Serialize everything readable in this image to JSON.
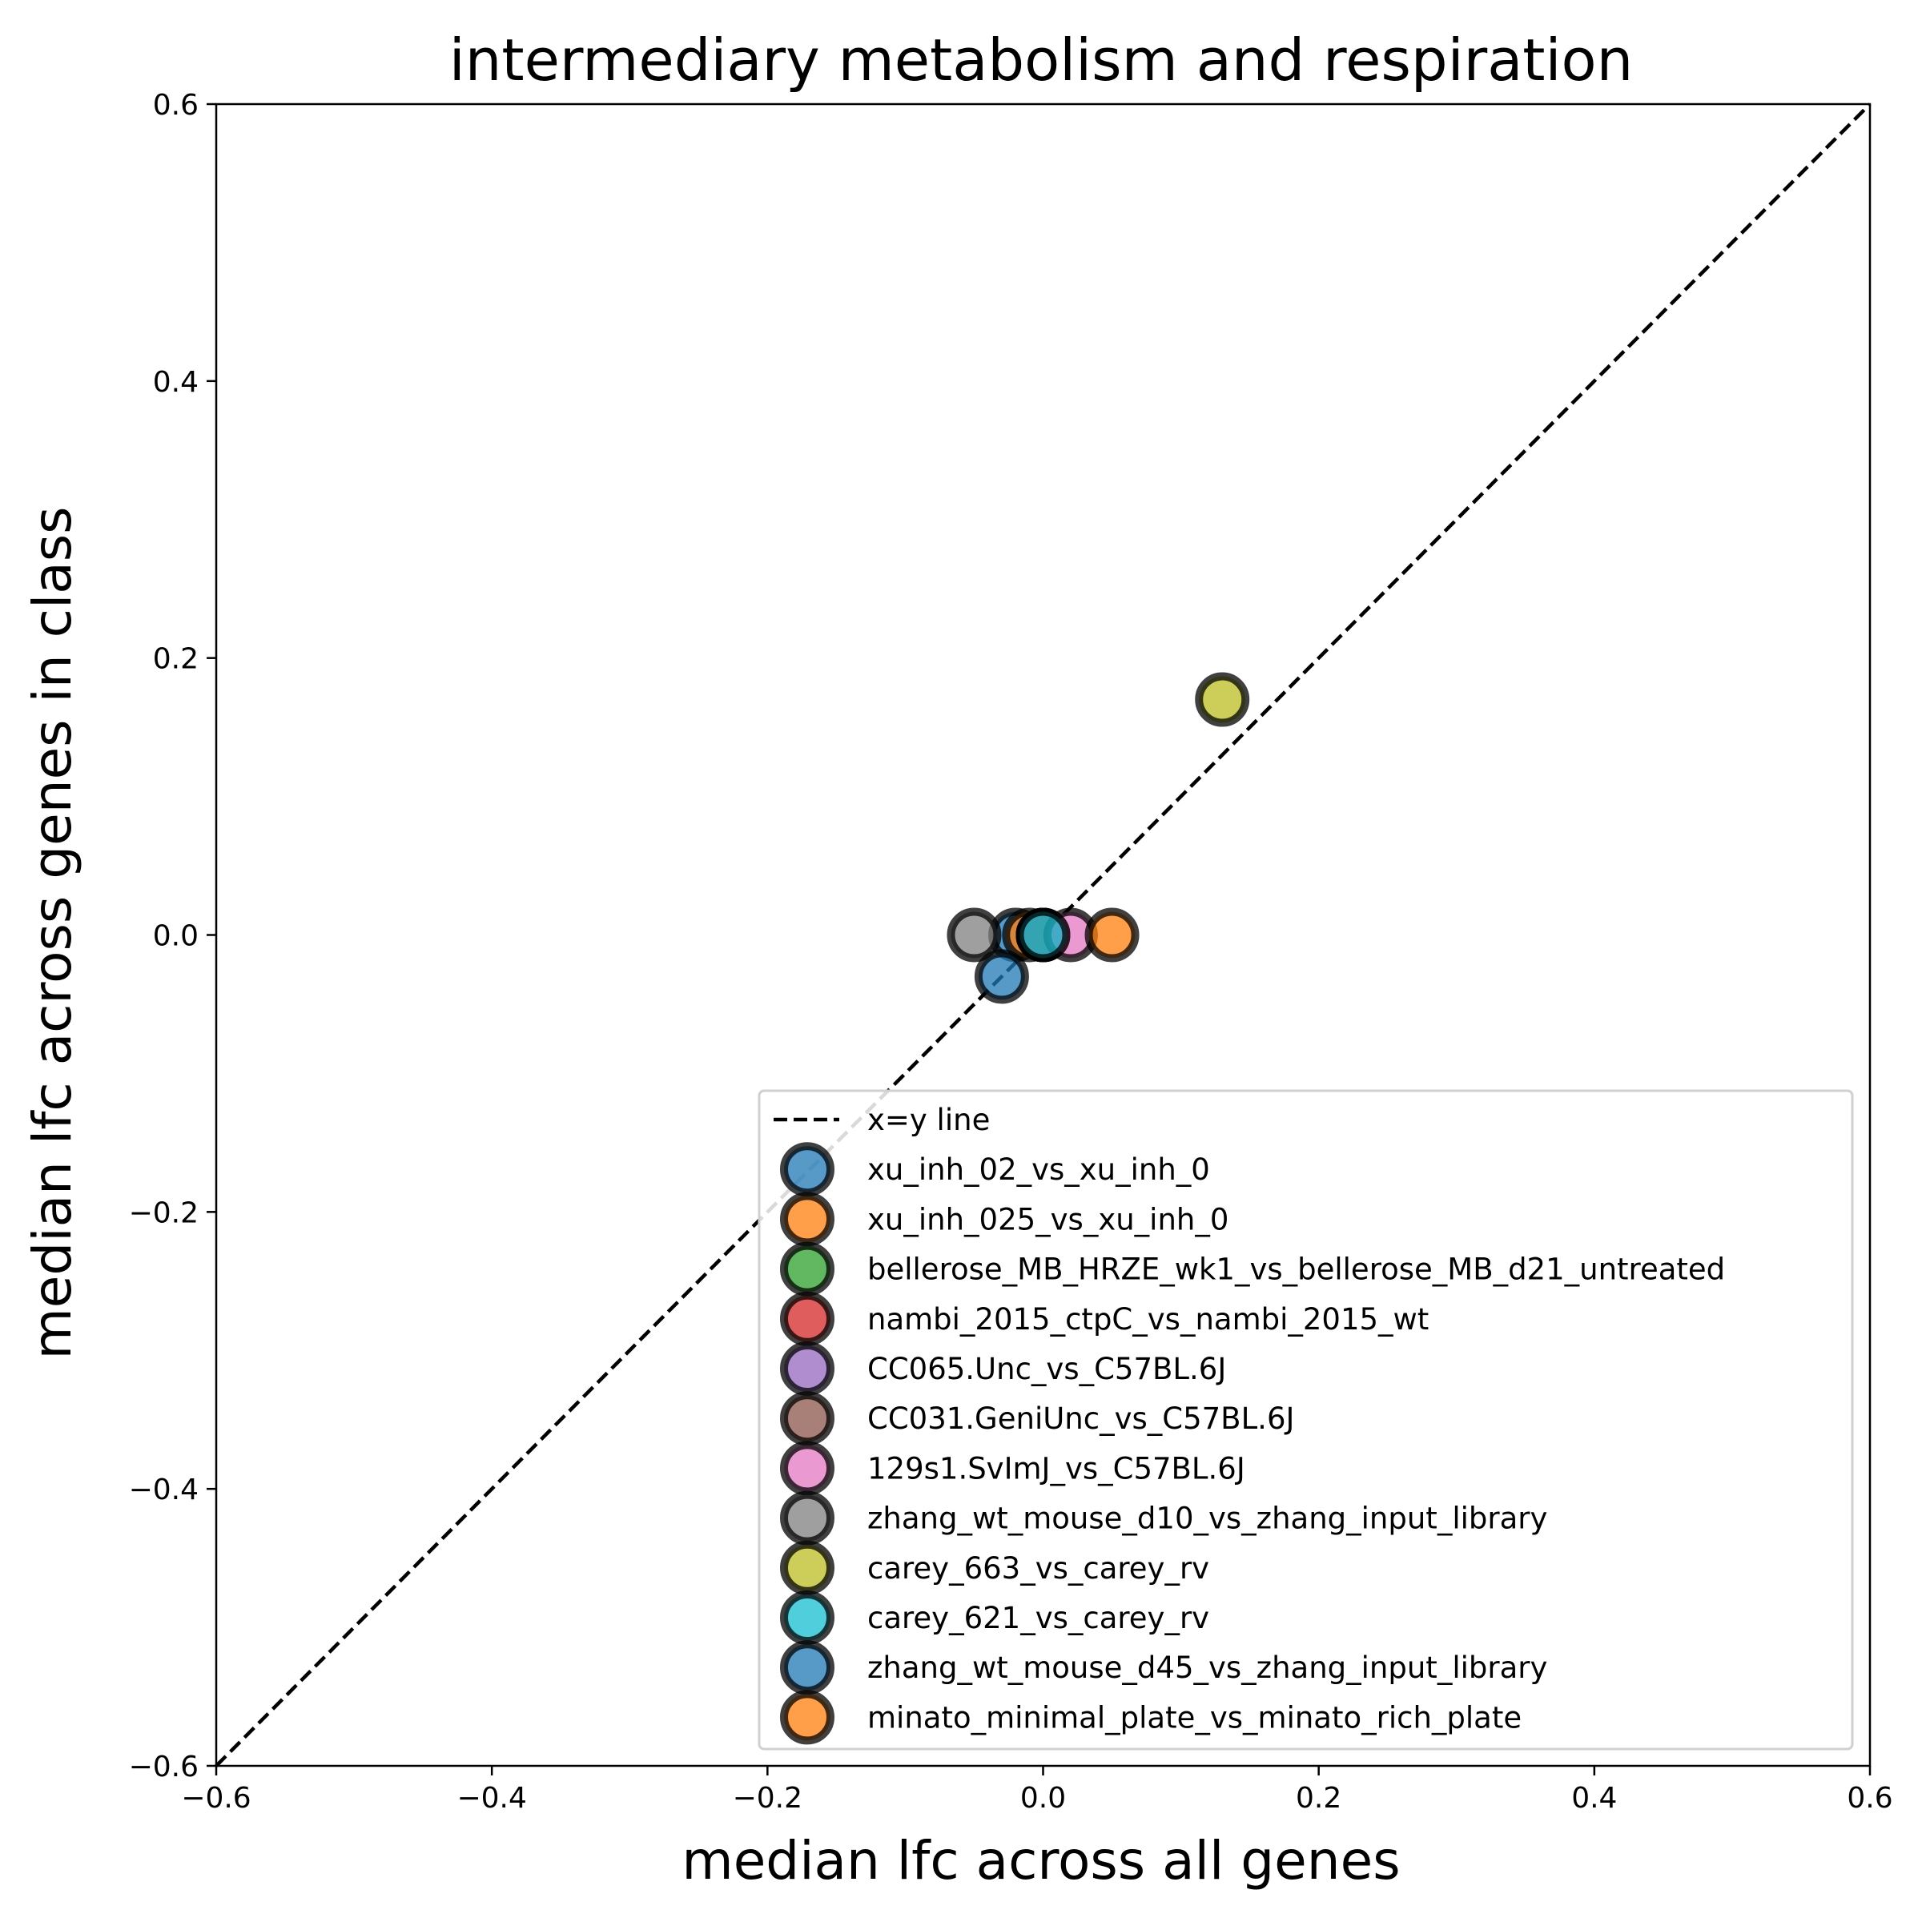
{
  "chart_data": {
    "type": "scatter",
    "title": "intermediary metabolism and respiration",
    "xlabel": "median lfc across all genes",
    "ylabel": "median lfc across genes in class",
    "xlim": [
      -0.6,
      0.6
    ],
    "ylim": [
      -0.6,
      0.6
    ],
    "xticks": [
      -0.6,
      -0.4,
      -0.2,
      0.0,
      0.2,
      0.4,
      0.6
    ],
    "yticks": [
      -0.6,
      -0.4,
      -0.2,
      0.0,
      0.2,
      0.4,
      0.6
    ],
    "xtick_labels": [
      "−0.6",
      "−0.4",
      "−0.2",
      "0.0",
      "0.2",
      "0.4",
      "0.6"
    ],
    "ytick_labels": [
      "−0.6",
      "−0.4",
      "−0.2",
      "0.0",
      "0.2",
      "0.4",
      "0.6"
    ],
    "grid": false,
    "legend_position": "lower-right",
    "reference_line": {
      "name": "x=y line",
      "style": "dashed",
      "color": "#000000"
    },
    "series": [
      {
        "name": "xu_inh_02_vs_xu_inh_0",
        "color": "#1f77b4",
        "x": -0.02,
        "y": 0.0
      },
      {
        "name": "xu_inh_025_vs_xu_inh_0",
        "color": "#ff7f0e",
        "x": -0.01,
        "y": 0.0
      },
      {
        "name": "bellerose_MB_HRZE_wk1_vs_bellerose_MB_d21_untreated",
        "color": "#2ca02c",
        "x": 0.0,
        "y": 0.0
      },
      {
        "name": "nambi_2015_ctpC_vs_nambi_2015_wt",
        "color": "#d62728",
        "x": 0.0,
        "y": 0.0
      },
      {
        "name": "CC065.Unc_vs_C57BL.6J",
        "color": "#9467bd",
        "x": 0.0,
        "y": 0.0
      },
      {
        "name": "CC031.GeniUnc_vs_C57BL.6J",
        "color": "#8c564b",
        "x": 0.0,
        "y": 0.0
      },
      {
        "name": "129s1.SvImJ_vs_C57BL.6J",
        "color": "#e377c2",
        "x": 0.02,
        "y": 0.0
      },
      {
        "name": "zhang_wt_mouse_d10_vs_zhang_input_library",
        "color": "#7f7f7f",
        "x": -0.05,
        "y": 0.0
      },
      {
        "name": "carey_663_vs_carey_rv",
        "color": "#bcbd22",
        "x": 0.13,
        "y": 0.17
      },
      {
        "name": "carey_621_vs_carey_rv",
        "color": "#17becf",
        "x": 0.0,
        "y": 0.0
      },
      {
        "name": "zhang_wt_mouse_d45_vs_zhang_input_library",
        "color": "#1f77b4",
        "x": -0.03,
        "y": -0.03
      },
      {
        "name": "minato_minimal_plate_vs_minato_rich_plate",
        "color": "#ff7f0e",
        "x": 0.05,
        "y": 0.0
      }
    ]
  }
}
